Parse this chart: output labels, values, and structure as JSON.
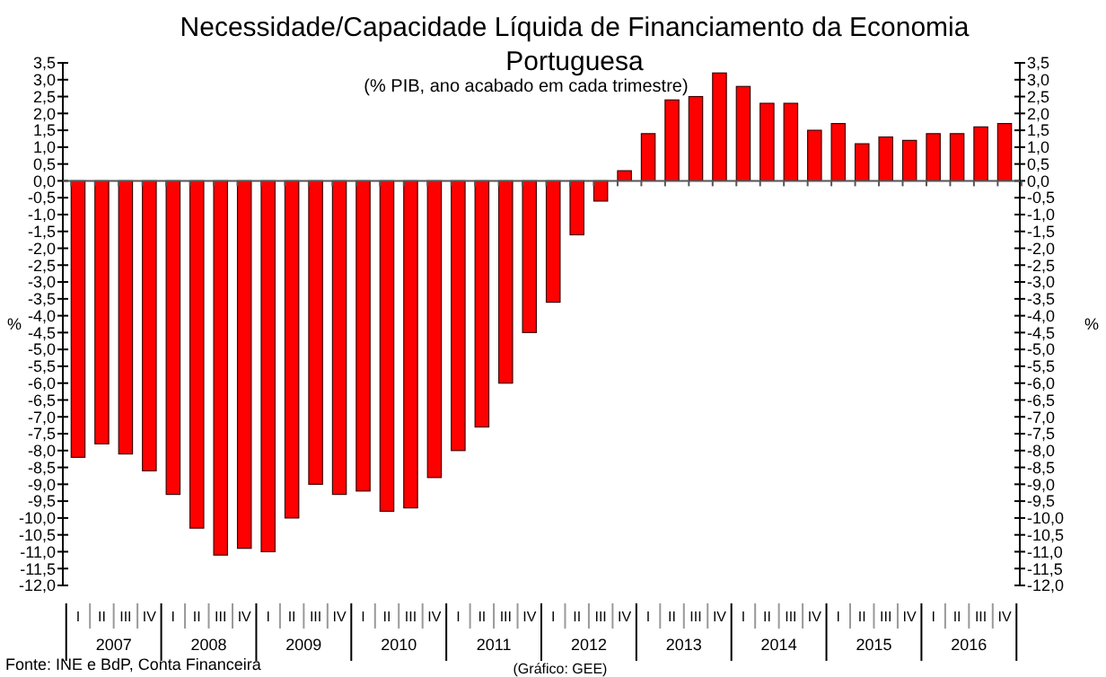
{
  "chart_data": {
    "type": "bar",
    "title": "Necessidade/Capacidade Líquida de Financiamento da Economia Portuguesa",
    "subtitle": "(% PIB, ano acabado em cada trimestre)",
    "ylabel": "%",
    "y2label": "%",
    "categories": [
      "I",
      "II",
      "III",
      "IV",
      "I",
      "II",
      "III",
      "IV",
      "I",
      "II",
      "III",
      "IV",
      "I",
      "II",
      "III",
      "IV",
      "I",
      "II",
      "III",
      "IV",
      "I",
      "II",
      "III",
      "IV",
      "I",
      "II",
      "III",
      "IV",
      "I",
      "II",
      "III",
      "IV",
      "I",
      "II",
      "III",
      "IV",
      "I",
      "II",
      "III",
      "IV"
    ],
    "series": [
      {
        "color": "#ff0000",
        "values": [
          -8.2,
          -7.8,
          -8.1,
          -8.6,
          -9.3,
          -10.3,
          -11.1,
          -10.9,
          -11.0,
          -10.0,
          -9.0,
          -9.3,
          -9.2,
          -9.8,
          -9.7,
          -8.8,
          -8.0,
          -7.3,
          -6.0,
          -4.5,
          -3.6,
          -1.6,
          -0.6,
          0.3,
          1.4,
          2.4,
          2.5,
          3.2,
          2.8,
          2.3,
          2.3,
          1.5,
          1.7,
          1.1,
          1.3,
          1.2,
          1.4,
          1.4,
          1.6,
          1.7
        ]
      }
    ],
    "ylim": [
      -12,
      3.5
    ],
    "yticks": [
      {
        "value": -12,
        "label": "-12,0"
      },
      {
        "value": -11.5,
        "label": "-11,5"
      },
      {
        "value": -11,
        "label": "-11,0"
      },
      {
        "value": -10.5,
        "label": "-10,5"
      },
      {
        "value": -10,
        "label": "-10,0"
      },
      {
        "value": -9.5,
        "label": "-9,5"
      },
      {
        "value": -9,
        "label": "-9,0"
      },
      {
        "value": -8.5,
        "label": "-8,5"
      },
      {
        "value": -8,
        "label": "-8,0"
      },
      {
        "value": -7.5,
        "label": "-7,5"
      },
      {
        "value": -7,
        "label": "-7,0"
      },
      {
        "value": -6.5,
        "label": "-6,5"
      },
      {
        "value": -6,
        "label": "-6,0"
      },
      {
        "value": -5.5,
        "label": "-5,5"
      },
      {
        "value": -5,
        "label": "-5,0"
      },
      {
        "value": -4.5,
        "label": "-4,5"
      },
      {
        "value": -4,
        "label": "-4,0"
      },
      {
        "value": -3.5,
        "label": "-3,5"
      },
      {
        "value": -3,
        "label": "-3,0"
      },
      {
        "value": -2.5,
        "label": "-2,5"
      },
      {
        "value": -2,
        "label": "-2,0"
      },
      {
        "value": -1.5,
        "label": "-1,5"
      },
      {
        "value": -1,
        "label": "-1,0"
      },
      {
        "value": -0.5,
        "label": "-0,5"
      },
      {
        "value": 0,
        "label": "0,0"
      },
      {
        "value": 0.5,
        "label": "0,5"
      },
      {
        "value": 1,
        "label": "1,0"
      },
      {
        "value": 1.5,
        "label": "1,5"
      },
      {
        "value": 2,
        "label": "2,0"
      },
      {
        "value": 2.5,
        "label": "2,5"
      },
      {
        "value": 3,
        "label": "3,0"
      },
      {
        "value": 3.5,
        "label": "3,5"
      }
    ],
    "y2lim": [
      -12,
      3.5
    ],
    "y2ticks": [
      {
        "value": -12,
        "label": "-12,0"
      },
      {
        "value": -11.5,
        "label": "-11,5"
      },
      {
        "value": -11,
        "label": "-11,0"
      },
      {
        "value": -10.5,
        "label": "-10,5"
      },
      {
        "value": -10,
        "label": "-10,0"
      },
      {
        "value": -9.5,
        "label": "-9,5"
      },
      {
        "value": -9,
        "label": "-9,0"
      },
      {
        "value": -8.5,
        "label": "-8,5"
      },
      {
        "value": -8,
        "label": "-8,0"
      },
      {
        "value": -7.5,
        "label": "-7,5"
      },
      {
        "value": -7,
        "label": "-7,0"
      },
      {
        "value": -6.5,
        "label": "-6,5"
      },
      {
        "value": -6,
        "label": "-6,0"
      },
      {
        "value": -5.5,
        "label": "-5,5"
      },
      {
        "value": -5,
        "label": "-5,0"
      },
      {
        "value": -4.5,
        "label": "-4,5"
      },
      {
        "value": -4,
        "label": "-4,0"
      },
      {
        "value": -3.5,
        "label": "-3,5"
      },
      {
        "value": -3,
        "label": "-3,0"
      },
      {
        "value": -2.5,
        "label": "-2,5"
      },
      {
        "value": -2,
        "label": "-2,0"
      },
      {
        "value": -1.5,
        "label": "-1,5"
      },
      {
        "value": -1,
        "label": "-1,0"
      },
      {
        "value": -0.5,
        "label": "-0,5"
      },
      {
        "value": 0,
        "label": "0,0"
      },
      {
        "value": 0.5,
        "label": "0,5"
      },
      {
        "value": 1,
        "label": "1,0"
      },
      {
        "value": 1.5,
        "label": "1,5"
      },
      {
        "value": 2,
        "label": "2,0"
      },
      {
        "value": 2.5,
        "label": "2,5"
      },
      {
        "value": 3,
        "label": "3,0"
      },
      {
        "value": 3.5,
        "label": "3,5"
      }
    ],
    "annotations": [
      "Fonte: INE e BdP, Conta Financeira",
      "(Gráfico: GEE)",
      "2007",
      "2008",
      "2009",
      "2010",
      "2011",
      "2012",
      "2013",
      "2014",
      "2015",
      "2016"
    ]
  }
}
